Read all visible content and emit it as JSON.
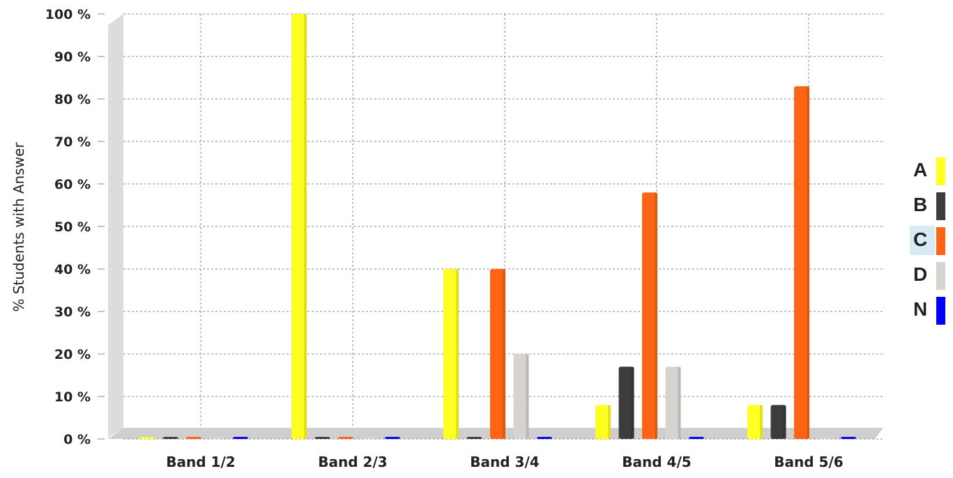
{
  "chart_data": {
    "type": "bar",
    "title": "",
    "xlabel": "",
    "ylabel": "% Students with Answer",
    "ylim": [
      0,
      100
    ],
    "y_ticks": [
      "0 %",
      "10 %",
      "20 %",
      "30 %",
      "40 %",
      "50 %",
      "60 %",
      "70 %",
      "80 %",
      "90 %",
      "100 %"
    ],
    "categories": [
      "Band 1/2",
      "Band 2/3",
      "Band 3/4",
      "Band 4/5",
      "Band 5/6"
    ],
    "series": [
      {
        "name": "A",
        "color": "#ffff22",
        "values": [
          0,
          100,
          40,
          8,
          8
        ]
      },
      {
        "name": "B",
        "color": "#3c3c3c",
        "values": [
          0,
          0,
          0,
          17,
          8
        ]
      },
      {
        "name": "C",
        "color": "#ff6314",
        "values": [
          0,
          0,
          40,
          58,
          83
        ]
      },
      {
        "name": "D",
        "color": "#d7d3d1",
        "values": [
          0,
          0,
          20,
          17,
          0
        ]
      },
      {
        "name": "N",
        "color": "#0000ff",
        "values": [
          0,
          0,
          0,
          0,
          0
        ]
      }
    ],
    "grid": true,
    "legend_position": "right",
    "legend_highlight": "C"
  }
}
